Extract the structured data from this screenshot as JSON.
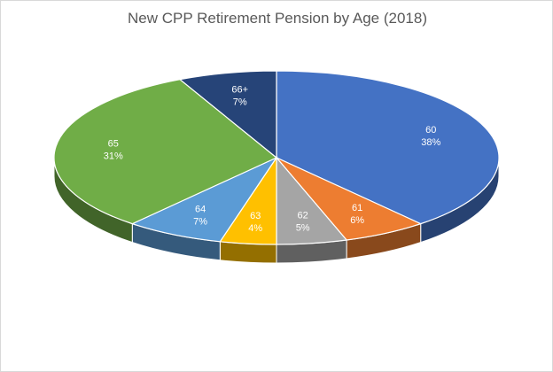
{
  "chart_data": {
    "type": "pie",
    "style": "3d",
    "title": "New CPP Retirement Pension by Age (2018)",
    "categories": [
      "60",
      "61",
      "62",
      "63",
      "64",
      "65",
      "66+"
    ],
    "values": [
      38,
      6,
      5,
      4,
      7,
      31,
      7
    ],
    "value_labels": [
      "38%",
      "6%",
      "5%",
      "4%",
      "7%",
      "31%",
      "7%"
    ],
    "colors": [
      "#4472C4",
      "#ED7D31",
      "#A5A5A5",
      "#FFC000",
      "#5B9BD5",
      "#70AD47",
      "#264478"
    ],
    "legend": "none"
  }
}
